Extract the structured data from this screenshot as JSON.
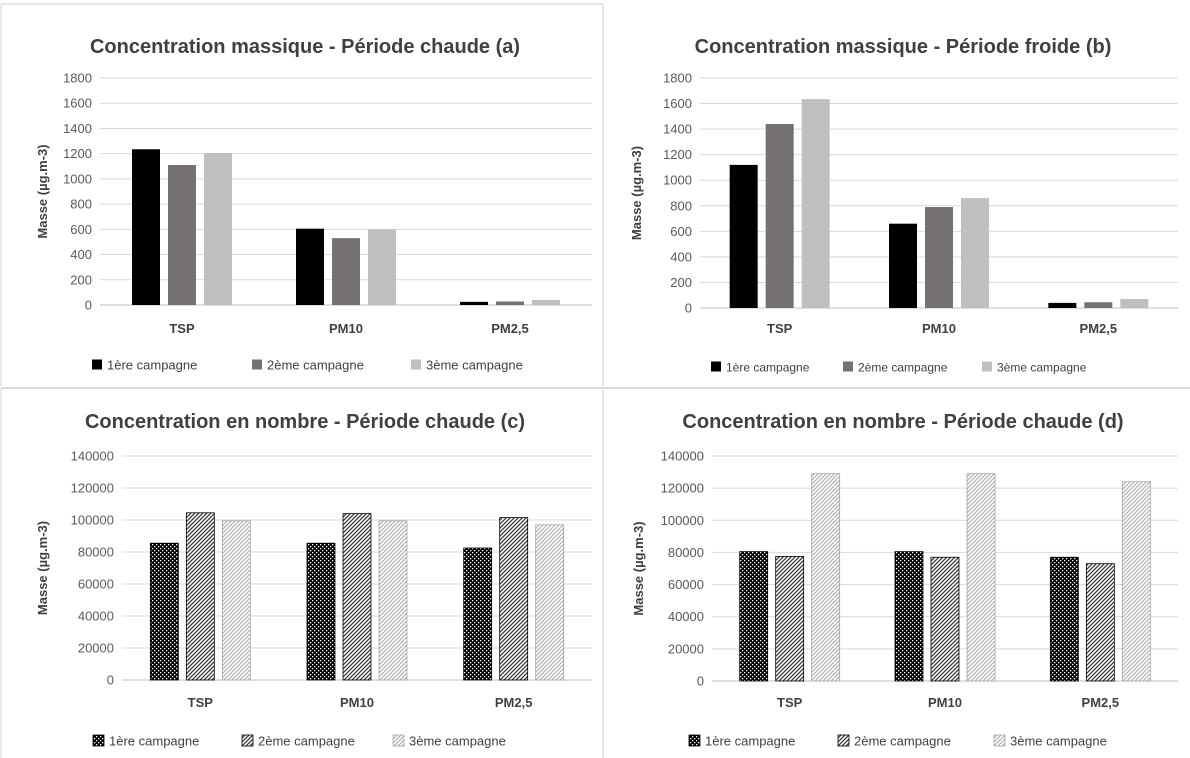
{
  "chart_data": [
    {
      "type": "bar",
      "title": "Concentration massique - Période chaude (a)",
      "ylabel": "Masse (µg.m-3)",
      "xlabel": "",
      "ylim": [
        0,
        1800
      ],
      "yticks": [
        "0",
        "200",
        "400",
        "600",
        "800",
        "1000",
        "1200",
        "1400",
        "1600",
        "1800"
      ],
      "categories": [
        "TSP",
        "PM10",
        "PM2,5"
      ],
      "series": [
        {
          "name": "1ère campagne",
          "values": [
            1235,
            605,
            25
          ],
          "color": "#000000",
          "pattern": "solid"
        },
        {
          "name": "2ème campagne",
          "values": [
            1110,
            530,
            28
          ],
          "color": "#767171",
          "pattern": "solid"
        },
        {
          "name": "3ème campagne",
          "values": [
            1205,
            600,
            40
          ],
          "color": "#bfbfbf",
          "pattern": "solid"
        }
      ],
      "legend": "bottom",
      "grid": true
    },
    {
      "type": "bar",
      "title": "Concentration massique - Période  froide (b)",
      "ylabel": "Masse (µg.m-3)",
      "xlabel": "",
      "ylim": [
        0,
        1800
      ],
      "yticks": [
        "0",
        "200",
        "400",
        "600",
        "800",
        "1000",
        "1200",
        "1400",
        "1600",
        "1800"
      ],
      "categories": [
        "TSP",
        "PM10",
        "PM2,5"
      ],
      "series": [
        {
          "name": "1ère campagne",
          "values": [
            1120,
            660,
            40
          ],
          "color": "#000000",
          "pattern": "solid"
        },
        {
          "name": "2ème campagne",
          "values": [
            1440,
            790,
            45
          ],
          "color": "#767171",
          "pattern": "solid"
        },
        {
          "name": "3ème campagne",
          "values": [
            1635,
            860,
            70
          ],
          "color": "#bfbfbf",
          "pattern": "solid"
        }
      ],
      "legend": "bottom",
      "grid": true
    },
    {
      "type": "bar",
      "title": "Concentration en nombre - Période chaude (c)",
      "ylabel": "Masse (µg.m-3)",
      "xlabel": "",
      "ylim": [
        0,
        140000
      ],
      "yticks": [
        "0",
        "20000",
        "40000",
        "60000",
        "80000",
        "100000",
        "120000",
        "140000"
      ],
      "categories": [
        "TSP",
        "PM10",
        "PM2,5"
      ],
      "series": [
        {
          "name": "1ère campagne",
          "values": [
            85500,
            85500,
            82500
          ],
          "color": "#000000",
          "pattern": "dots"
        },
        {
          "name": "2ème campagne",
          "values": [
            104500,
            104000,
            101500
          ],
          "color": "#404040",
          "pattern": "hatch"
        },
        {
          "name": "3ème campagne",
          "values": [
            99500,
            99500,
            97000
          ],
          "color": "#a6a6a6",
          "pattern": "hatch-light"
        }
      ],
      "legend": "bottom",
      "grid": true
    },
    {
      "type": "bar",
      "title": "Concentration en nombre - Période chaude (d)",
      "ylabel": "Masse (µg.m-3)",
      "xlabel": "",
      "ylim": [
        0,
        140000
      ],
      "yticks": [
        "0",
        "20000",
        "40000",
        "60000",
        "80000",
        "100000",
        "120000",
        "140000"
      ],
      "categories": [
        "TSP",
        "PM10",
        "PM2,5"
      ],
      "series": [
        {
          "name": "1ère campagne",
          "values": [
            80500,
            80500,
            77000
          ],
          "color": "#000000",
          "pattern": "dots"
        },
        {
          "name": "2ème campagne",
          "values": [
            77500,
            77000,
            73000
          ],
          "color": "#595959",
          "pattern": "hatch"
        },
        {
          "name": "3ème campagne",
          "values": [
            129000,
            129000,
            124000
          ],
          "color": "#a6a6a6",
          "pattern": "hatch-light"
        }
      ],
      "legend": "bottom",
      "grid": true
    }
  ]
}
